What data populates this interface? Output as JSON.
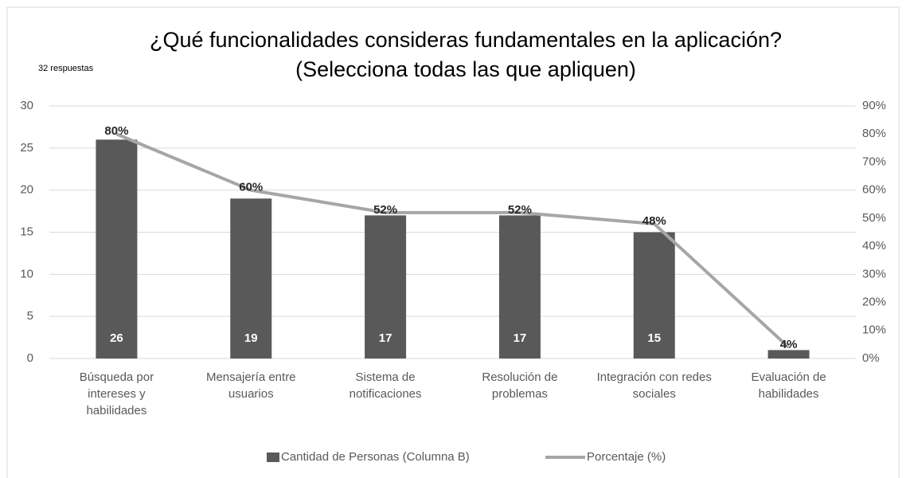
{
  "chart_data": {
    "type": "bar-line",
    "title": "¿Qué funcionalidades consideras fundamentales en la aplicación? (Selecciona todas las que apliquen)",
    "annotation": "32 respuestas",
    "categories": [
      "Búsqueda por intereses y habilidades",
      "Mensajería entre usuarios",
      "Sistema de notificaciones",
      "Resolución de problemas",
      "Integración con redes sociales",
      "Evaluación de habilidades"
    ],
    "series": [
      {
        "name": "Cantidad de Personas (Columna B)",
        "type": "bar",
        "color": "#595959",
        "values": [
          26,
          19,
          17,
          17,
          15,
          1
        ],
        "value_labels": [
          "26",
          "19",
          "17",
          "17",
          "15",
          null
        ]
      },
      {
        "name": "Porcentaje (%)",
        "type": "line",
        "axis": "y2",
        "color": "#a6a6a6",
        "values": [
          80,
          60,
          52,
          52,
          48,
          4
        ],
        "value_labels": [
          "80%",
          "60%",
          "52%",
          "52%",
          "48%",
          "4%"
        ]
      }
    ],
    "ylim": [
      0,
      30
    ],
    "yticks": [
      0,
      5,
      10,
      15,
      20,
      25,
      30
    ],
    "y2lim": [
      0,
      90
    ],
    "y2ticks": [
      {
        "value": 0,
        "label": "0%"
      },
      {
        "value": 10,
        "label": "10%"
      },
      {
        "value": 20,
        "label": "20%"
      },
      {
        "value": 30,
        "label": "30%"
      },
      {
        "value": 40,
        "label": "40%"
      },
      {
        "value": 50,
        "label": "50%"
      },
      {
        "value": 60,
        "label": "60%"
      },
      {
        "value": 70,
        "label": "70%"
      },
      {
        "value": 80,
        "label": "80%"
      },
      {
        "value": 90,
        "label": "90%"
      }
    ],
    "grid": true,
    "legend": "bottom"
  }
}
